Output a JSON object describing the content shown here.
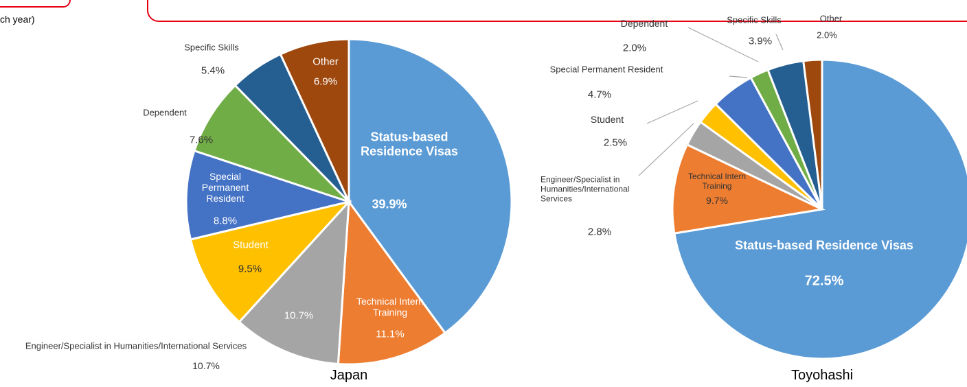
{
  "header": {
    "text": "ch year)"
  },
  "chart_data": [
    {
      "type": "pie",
      "title": "Japan",
      "categories": [
        "Status-based Residence Visas",
        "Technical Intern Training",
        "Engineer/Specialist in Humanities/International Services",
        "Student",
        "Special Permanent Resident",
        "Dependent",
        "Specific Skills",
        "Other"
      ],
      "values": [
        39.9,
        11.1,
        10.7,
        9.5,
        8.8,
        7.6,
        5.4,
        6.9
      ],
      "value_labels": [
        "39.9%",
        "11.1%",
        "10.7%",
        "9.5%",
        "8.8%",
        "7.6%",
        "5.4%",
        "6.9%"
      ],
      "colors": [
        "#5b9bd5",
        "#ed7d31",
        "#a5a5a5",
        "#ffc000",
        "#4472c4",
        "#70ad47",
        "#255e91",
        "#9e480e"
      ]
    },
    {
      "type": "pie",
      "title": "Toyohashi",
      "categories": [
        "Status-based Residence Visas",
        "Technical Intern Training",
        "Engineer/Specialist in Humanities/International Services",
        "Student",
        "Special Permanent Resident",
        "Dependent",
        "Specific Skills",
        "Other"
      ],
      "values": [
        72.5,
        9.7,
        2.8,
        2.5,
        4.7,
        2.0,
        3.9,
        2.0
      ],
      "value_labels": [
        "72.5%",
        "9.7%",
        "2.8%",
        "2.5%",
        "4.7%",
        "2.0%",
        "3.9%",
        "2.0%"
      ],
      "colors": [
        "#5b9bd5",
        "#ed7d31",
        "#a5a5a5",
        "#ffc000",
        "#4472c4",
        "#70ad47",
        "#255e91",
        "#9e480e"
      ]
    }
  ]
}
